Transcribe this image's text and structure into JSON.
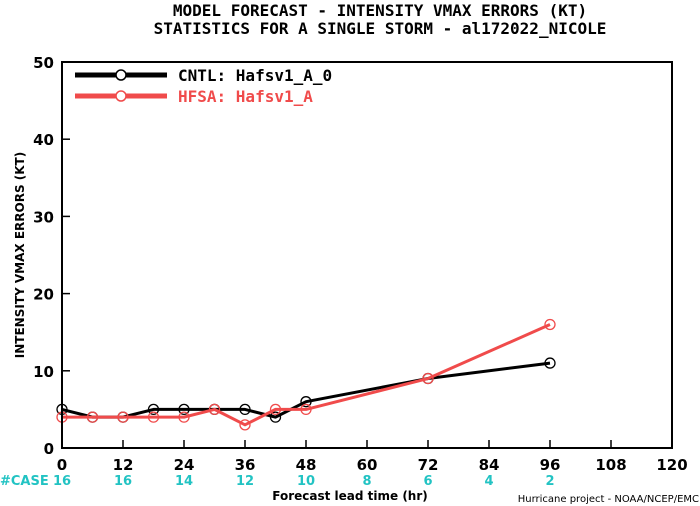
{
  "chart_data": {
    "type": "line",
    "title": "MODEL FORECAST - INTENSITY VMAX ERRORS (KT)",
    "subtitle": "STATISTICS FOR A SINGLE STORM - al172022_NICOLE",
    "xlabel": "Forecast lead time (hr)",
    "ylabel": "INTENSITY VMAX ERRORS (KT)",
    "xlim": [
      0,
      120
    ],
    "ylim": [
      0,
      50
    ],
    "xticks": [
      0,
      12,
      24,
      36,
      48,
      60,
      72,
      84,
      96,
      108,
      120
    ],
    "yticks": [
      0,
      10,
      20,
      30,
      40,
      50
    ],
    "legend_position": "top-left",
    "series": [
      {
        "name": "CNTL: Hafsv1_A_0",
        "color": "#000000",
        "x": [
          0,
          6,
          12,
          18,
          24,
          30,
          36,
          42,
          48,
          72,
          96
        ],
        "y": [
          5,
          4,
          4,
          5,
          5,
          5,
          5,
          4,
          6,
          9,
          11
        ]
      },
      {
        "name": "HFSA: Hafsv1_A",
        "color": "#f04b4b",
        "x": [
          0,
          6,
          12,
          18,
          24,
          30,
          36,
          42,
          48,
          72,
          96
        ],
        "y": [
          4,
          4,
          4,
          4,
          4,
          5,
          3,
          5,
          5,
          9,
          16
        ]
      }
    ],
    "cases": {
      "label": "#CASE",
      "color": "#22c3c3",
      "x": [
        0,
        12,
        24,
        36,
        48,
        60,
        72,
        84,
        96
      ],
      "values": [
        "16",
        "16",
        "14",
        "12",
        "10",
        "8",
        "6",
        "4",
        "2"
      ]
    },
    "credit": "Hurricane project - NOAA/NCEP/EMC"
  }
}
